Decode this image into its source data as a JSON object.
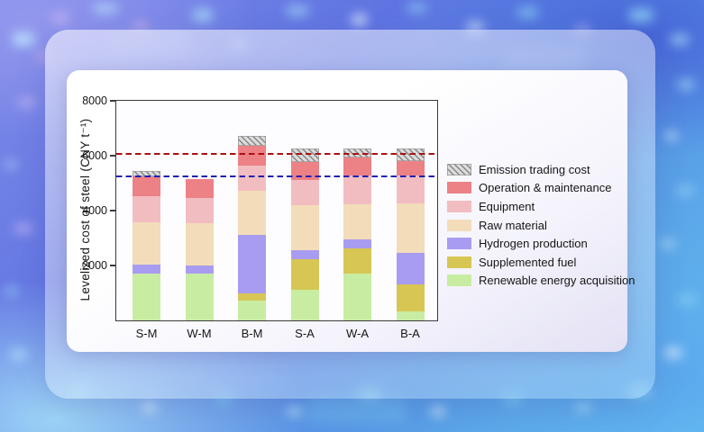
{
  "chart_data": {
    "type": "bar",
    "stacked": true,
    "title": "",
    "ylabel": "Levelized cost of steel (CNY t⁻¹)",
    "xlabel": "",
    "ylim": [
      0,
      8000
    ],
    "yticks": [
      2000,
      4000,
      6000,
      8000
    ],
    "grid": false,
    "legend_position": "right",
    "categories": [
      "S-M",
      "W-M",
      "B-M",
      "S-A",
      "W-A",
      "B-A"
    ],
    "series": [
      {
        "name": "Renewable energy acquisition",
        "color": "#c8eda2",
        "values": [
          1690,
          1710,
          720,
          1100,
          1690,
          340
        ]
      },
      {
        "name": "Supplemented fuel",
        "color": "#d7c654",
        "values": [
          0,
          0,
          270,
          1140,
          920,
          980
        ]
      },
      {
        "name": "Hydrogen production",
        "color": "#a89cf0",
        "values": [
          330,
          300,
          2110,
          330,
          330,
          1140
        ]
      },
      {
        "name": "Raw material",
        "color": "#f3dcba",
        "values": [
          1570,
          1520,
          1630,
          1630,
          1300,
          1790
        ]
      },
      {
        "name": "Equipment",
        "color": "#f2bdc1",
        "values": [
          920,
          920,
          920,
          920,
          1030,
          1030
        ]
      },
      {
        "name": "Operation & maintenance",
        "color": "#ec8186",
        "values": [
          730,
          710,
          700,
          650,
          650,
          540
        ]
      },
      {
        "name": "Emission trading cost",
        "color": "hatch",
        "values": [
          200,
          0,
          380,
          490,
          330,
          430
        ]
      }
    ],
    "legend": [
      "Emission trading cost",
      "Operation & maintenance",
      "Equipment",
      "Raw material",
      "Hydrogen production",
      "Supplemented fuel",
      "Renewable energy acquisition"
    ],
    "reference_lines": [
      {
        "value": 6070,
        "color": "#a81212",
        "style": "dashed"
      },
      {
        "value": 5250,
        "color": "#2121b2",
        "style": "dashed"
      }
    ]
  }
}
